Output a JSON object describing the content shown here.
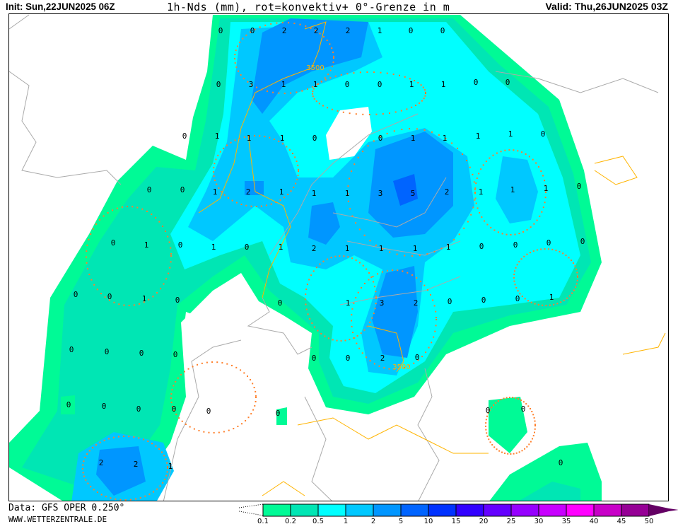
{
  "header": {
    "init": "Init: Sun,22JUN2025 06Z",
    "title": "1h-Nds (mm), rot=konvektiv+ 0°-Grenze in m",
    "valid": "Valid: Thu,26JUN2025 03Z"
  },
  "footer": {
    "data_source": "Data: GFS OPER 0.250°",
    "website": "WWW.WETTERZENTRALE.DE"
  },
  "legend": {
    "ticks": [
      "0.1",
      "0.2",
      "0.5",
      "1",
      "2",
      "5",
      "10",
      "15",
      "20",
      "25",
      "30",
      "35",
      "40",
      "45",
      "50"
    ],
    "colors": [
      "#00fa96",
      "#00e6b4",
      "#00ffff",
      "#00c8ff",
      "#0096ff",
      "#0064ff",
      "#0032ff",
      "#3200ff",
      "#6400ff",
      "#9600ff",
      "#c800ff",
      "#ff00ff",
      "#c800c8",
      "#960096",
      "#640064"
    ]
  },
  "map": {
    "grid_values": [
      "0",
      "0",
      "2",
      "2",
      "2",
      "1",
      "0",
      "0",
      "0",
      "3",
      "1",
      "1",
      "0",
      "0",
      "1",
      "1",
      "0",
      "0",
      "0",
      "1",
      "1",
      "1",
      "0",
      "0",
      "1",
      "1",
      "1",
      "1",
      "0",
      "0",
      "0",
      "1",
      "2",
      "1",
      "1",
      "1",
      "3",
      "5",
      "2",
      "1",
      "1",
      "1",
      "0",
      "0",
      "1",
      "0",
      "1",
      "0",
      "1",
      "2",
      "1",
      "1",
      "1",
      "1",
      "0",
      "0",
      "0",
      "0",
      "0",
      "0",
      "1",
      "0",
      "0",
      "1",
      "3",
      "2",
      "0",
      "0",
      "0",
      "1",
      "0",
      "0",
      "0",
      "0",
      "0",
      "0",
      "2",
      "0",
      "0",
      "0",
      "0",
      "0",
      "0",
      "0",
      "0",
      "0",
      "2",
      "2",
      "1",
      "0"
    ],
    "freezing_level_labels": [
      "3500",
      "3500"
    ],
    "colors": {
      "coastline": "#aaaaaa",
      "freezing_level": "#ffb400",
      "convective": "#ff7f2a"
    }
  }
}
